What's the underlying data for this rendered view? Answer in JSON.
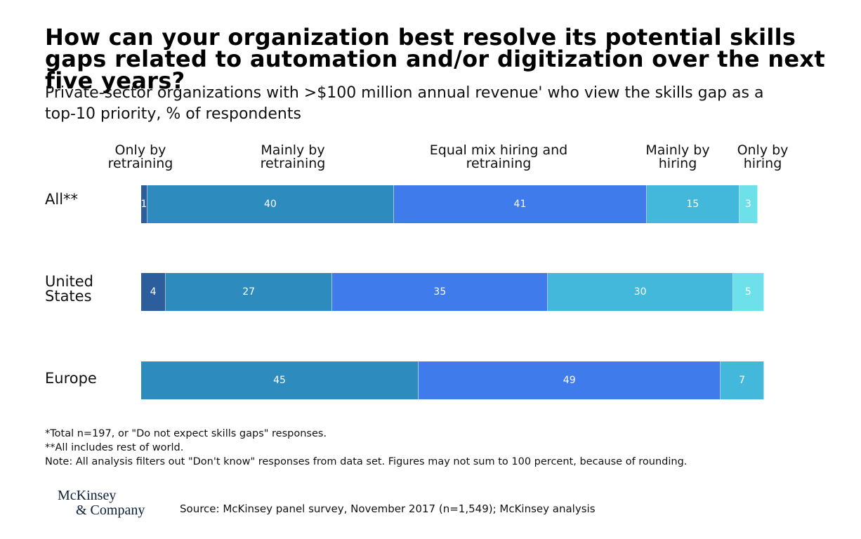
{
  "title": "How can your organization best resolve its potential skills gaps related to automation and/or digitization over the next five years?",
  "subtitle": "Private-sector organizations with >$100 million annual revenue' who view the skills gap as a top-10 priority, % of respondents",
  "colors": {
    "only_retraining": "#2c5e9e",
    "mainly_retraining": "#2e8bbe",
    "equal_mix": "#3f7bea",
    "mainly_hiring": "#44b8da",
    "only_hiring": "#6ee0ea"
  },
  "chart_data": {
    "type": "bar",
    "orientation": "horizontal",
    "stacked": true,
    "title": "How can your organization best resolve its potential skills gaps related to automation and/or digitization over the next five years?",
    "subtitle": "Private-sector organizations with >$100 million annual revenue' who view the skills gap as a top-10 priority, % of respondents",
    "series_headers": [
      {
        "key": "only_retraining",
        "line1": "Only by",
        "line2": "retraining"
      },
      {
        "key": "mainly_retraining",
        "line1": "Mainly by",
        "line2": "retraining"
      },
      {
        "key": "equal_mix",
        "line1": "Equal mix hiring and",
        "line2": "retraining"
      },
      {
        "key": "mainly_hiring",
        "line1": "Mainly by",
        "line2": "hiring"
      },
      {
        "key": "only_hiring",
        "line1": "Only by",
        "line2": "hiring"
      }
    ],
    "rows": [
      {
        "label_lines": [
          "All**"
        ],
        "segments": [
          {
            "series": "only_retraining",
            "value": 1
          },
          {
            "series": "mainly_retraining",
            "value": 40
          },
          {
            "series": "equal_mix",
            "value": 41
          },
          {
            "series": "mainly_hiring",
            "value": 15
          },
          {
            "series": "only_hiring",
            "value": 3
          }
        ]
      },
      {
        "label_lines": [
          "United",
          "States"
        ],
        "segments": [
          {
            "series": "only_retraining",
            "value": 4
          },
          {
            "series": "mainly_retraining",
            "value": 27
          },
          {
            "series": "equal_mix",
            "value": 35
          },
          {
            "series": "mainly_hiring",
            "value": 30
          },
          {
            "series": "only_hiring",
            "value": 5
          }
        ]
      },
      {
        "label_lines": [
          "Europe"
        ],
        "segments": [
          {
            "series": "mainly_retraining",
            "value": 45
          },
          {
            "series": "equal_mix",
            "value": 49
          },
          {
            "series": "mainly_hiring",
            "value": 7
          }
        ]
      }
    ]
  },
  "footnotes": [
    "*Total n=197, or \"Do not expect skills gaps\" responses.",
    "**All includes rest of world.",
    "Note: All analysis filters out \"Don't know\" responses from data set. Figures may not sum to 100 percent, because of rounding."
  ],
  "logo": {
    "line1": "McKinsey",
    "line2": "& Company"
  },
  "source": "Source: McKinsey panel survey, November 2017 (n=1,549); McKinsey analysis"
}
